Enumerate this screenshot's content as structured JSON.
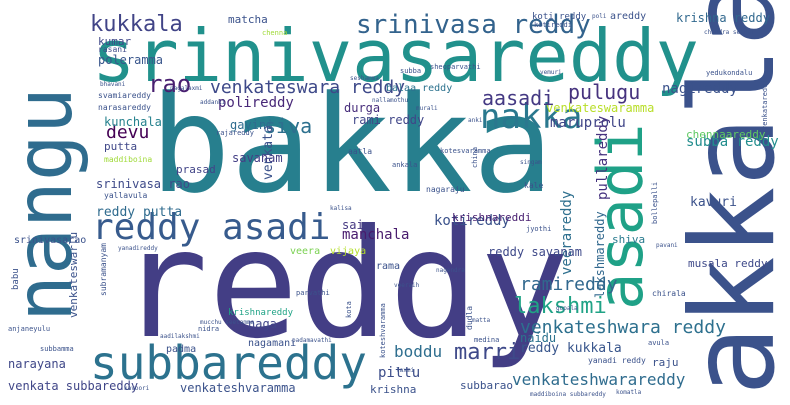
{
  "words": [
    {
      "text": "bakka",
      "color": "#277f8e"
    },
    {
      "text": "reddy",
      "color": "#433e85"
    },
    {
      "text": "srinivasareddy",
      "color": "#21918c"
    },
    {
      "text": "nangu",
      "color": "#2f6c8e"
    },
    {
      "text": "akkala",
      "color": "#3b528b"
    },
    {
      "text": "asadi",
      "color": "#1fa187"
    },
    {
      "text": "subbareddy",
      "color": "#2c728e"
    },
    {
      "text": "reddy asadi",
      "color": "#375b8d"
    },
    {
      "text": "nakka",
      "color": "#2a788e"
    },
    {
      "text": "srinivasa reddy",
      "color": "#33638d"
    },
    {
      "text": "kukkala",
      "color": "#414487"
    },
    {
      "text": "rao",
      "color": "#481f70"
    },
    {
      "text": "venkateswara reddy",
      "color": "#3e4989"
    },
    {
      "text": "aasadi",
      "color": "#443983"
    },
    {
      "text": "siva",
      "color": "#2d708e"
    },
    {
      "text": "pulugu",
      "color": "#46327e"
    },
    {
      "text": "devu",
      "color": "#440154"
    },
    {
      "text": "krishna reddy",
      "color": "#31688e"
    },
    {
      "text": "nagireddy",
      "color": "#3b528b"
    },
    {
      "text": "venkateswaramma",
      "color": "#b8de29"
    },
    {
      "text": "polireddy",
      "color": "#482878"
    },
    {
      "text": "poleramma",
      "color": "#39568c"
    },
    {
      "text": "kumar",
      "color": "#3f4788"
    },
    {
      "text": "rasani",
      "color": "#3e4a89"
    },
    {
      "text": "matcha",
      "color": "#3b528b"
    },
    {
      "text": "balaa reddy",
      "color": "#2c728e"
    },
    {
      "text": "rami reddy",
      "color": "#404688"
    },
    {
      "text": "durga",
      "color": "#472d7b"
    },
    {
      "text": "maruprolu",
      "color": "#404588"
    },
    {
      "text": "kunchala",
      "color": "#26828e"
    },
    {
      "text": "gavini",
      "color": "#2f6c8e"
    },
    {
      "text": "venkata",
      "color": "#3b528b"
    },
    {
      "text": "subba reddy",
      "color": "#228d8d"
    },
    {
      "text": "chennaareddy",
      "color": "#5ec962"
    },
    {
      "text": "putta",
      "color": "#3f4788"
    },
    {
      "text": "savanam",
      "color": "#433e85"
    },
    {
      "text": "prasad",
      "color": "#414487"
    },
    {
      "text": "srinivasa rao",
      "color": "#3e4a89"
    },
    {
      "text": "reddy putta",
      "color": "#2f6b8e"
    },
    {
      "text": "pullareddy",
      "color": "#46337f"
    },
    {
      "text": "kavuri",
      "color": "#3b528b"
    },
    {
      "text": "kotireddy",
      "color": "#3b528b"
    },
    {
      "text": "manchala",
      "color": "#481b6d"
    },
    {
      "text": "veerareddy",
      "color": "#2e6f8e"
    },
    {
      "text": "lakshmareddy",
      "color": "#31688e"
    },
    {
      "text": "sai",
      "color": "#453882"
    },
    {
      "text": "krishnareddi",
      "color": "#481f70"
    },
    {
      "text": "shiva",
      "color": "#297b8e"
    },
    {
      "text": "reddy savanam",
      "color": "#3e4989"
    },
    {
      "text": "srinivasarao",
      "color": "#3b528b"
    },
    {
      "text": "veera",
      "color": "#7ad151"
    },
    {
      "text": "vijaya",
      "color": "#b5de2b"
    },
    {
      "text": "ramireddy",
      "color": "#31688e"
    },
    {
      "text": "lakshmi",
      "color": "#20a386"
    },
    {
      "text": "musala reddy",
      "color": "#3e4989"
    },
    {
      "text": "rama",
      "color": "#3b528b"
    },
    {
      "text": "venkateshwara reddy",
      "color": "#2d708e"
    },
    {
      "text": "marri",
      "color": "#3e4989"
    },
    {
      "text": "naga",
      "color": "#404588"
    },
    {
      "text": "reddy kukkala",
      "color": "#39568c"
    },
    {
      "text": "boddu",
      "color": "#2e6e8e"
    },
    {
      "text": "naidu",
      "color": "#2c738e"
    },
    {
      "text": "pittu",
      "color": "#3d4e8a"
    },
    {
      "text": "venkateshwarareddy",
      "color": "#2f6c8e"
    },
    {
      "text": "venkateswarlu",
      "color": "#3b528b"
    },
    {
      "text": "narayana",
      "color": "#3f4788"
    },
    {
      "text": "venkata subbareddy",
      "color": "#404688"
    },
    {
      "text": "venkateshvaramma",
      "color": "#3b528b"
    },
    {
      "text": "krishna",
      "color": "#3b528b"
    },
    {
      "text": "subbarao",
      "color": "#3b528b"
    },
    {
      "text": "raju",
      "color": "#3b528b"
    },
    {
      "text": "krishnareddy",
      "color": "#20a386"
    },
    {
      "text": "nagamani",
      "color": "#3b528b"
    },
    {
      "text": "padma",
      "color": "#3b528b"
    },
    {
      "text": "subramanyam",
      "color": "#3b528b"
    },
    {
      "text": "babu",
      "color": "#3b528b"
    },
    {
      "text": "areddy",
      "color": "#3b528b"
    },
    {
      "text": "koti reddy",
      "color": "#3b528b"
    },
    {
      "text": "svamiareddy",
      "color": "#3b528b"
    },
    {
      "text": "narasareddy",
      "color": "#3b528b"
    },
    {
      "text": "maddiboina",
      "color": "#a0da39"
    },
    {
      "text": "yallavula",
      "color": "#3b528b"
    },
    {
      "text": "anjaneyulu",
      "color": "#3b528b"
    },
    {
      "text": "subbamma",
      "color": "#3b528b"
    },
    {
      "text": "kotireddi",
      "color": "#3b528b"
    },
    {
      "text": "kale",
      "color": "#3b528b"
    },
    {
      "text": "nagaraju",
      "color": "#3b528b"
    },
    {
      "text": "aatla",
      "color": "#3b528b"
    },
    {
      "text": "chirala",
      "color": "#3b528b"
    },
    {
      "text": "nidra",
      "color": "#3b528b"
    },
    {
      "text": "medina",
      "color": "#3b528b"
    },
    {
      "text": "kota",
      "color": "#3b528b"
    },
    {
      "text": "dudla",
      "color": "#3b528b"
    },
    {
      "text": "yanadi reddy",
      "color": "#3b528b"
    },
    {
      "text": "bollepalli",
      "color": "#3b528b"
    },
    {
      "text": "ankala",
      "color": "#3b528b"
    },
    {
      "text": "rajareddy",
      "color": "#3b528b"
    },
    {
      "text": "kotesvaramma",
      "color": "#3b528b"
    },
    {
      "text": "koteshvaramma",
      "color": "#3b528b"
    },
    {
      "text": "subba",
      "color": "#3b528b"
    },
    {
      "text": "sheoparvathi",
      "color": "#3b528b"
    },
    {
      "text": "yedukondalu",
      "color": "#3b528b"
    },
    {
      "text": "venkatareddi",
      "color": "#3b528b"
    },
    {
      "text": "parvathi",
      "color": "#3b528b"
    },
    {
      "text": "chandra sekhar",
      "color": "#3b528b"
    },
    {
      "text": "chenna",
      "color": "#a0da39"
    },
    {
      "text": "poli",
      "color": "#3b528b"
    },
    {
      "text": "addanki",
      "color": "#3b528b"
    },
    {
      "text": "pavani",
      "color": "#3b528b"
    },
    {
      "text": "laxmi",
      "color": "#3b528b"
    },
    {
      "text": "aadilakshmi",
      "color": "#3b528b"
    },
    {
      "text": "padamavathi",
      "color": "#3b528b"
    },
    {
      "text": "mucchu seetamma",
      "color": "#3b528b"
    },
    {
      "text": "kavoori",
      "color": "#3b528b"
    },
    {
      "text": "komatla",
      "color": "#3b528b"
    },
    {
      "text": "maddiboina subbareddy",
      "color": "#3b528b"
    },
    {
      "text": "jyothi",
      "color": "#3b528b"
    },
    {
      "text": "anki",
      "color": "#3b528b"
    },
    {
      "text": "murali",
      "color": "#3b528b"
    },
    {
      "text": "matta",
      "color": "#3b528b"
    },
    {
      "text": "veeraih",
      "color": "#3b528b"
    },
    {
      "text": "yanadireddy",
      "color": "#3b528b"
    },
    {
      "text": "vemuri",
      "color": "#3b528b"
    },
    {
      "text": "nallamothu",
      "color": "#3b528b"
    },
    {
      "text": "china",
      "color": "#3b528b"
    },
    {
      "text": "seshamma",
      "color": "#3b528b"
    },
    {
      "text": "gopala",
      "color": "#3b528b"
    },
    {
      "text": "nagendra",
      "color": "#3b528b"
    },
    {
      "text": "bhavani",
      "color": "#3b528b"
    },
    {
      "text": "kalisa",
      "color": "#3b528b"
    },
    {
      "text": "singam",
      "color": "#3b528b"
    },
    {
      "text": "nagalaxmi",
      "color": "#3b528b"
    },
    {
      "text": "avula",
      "color": "#3b528b"
    }
  ]
}
